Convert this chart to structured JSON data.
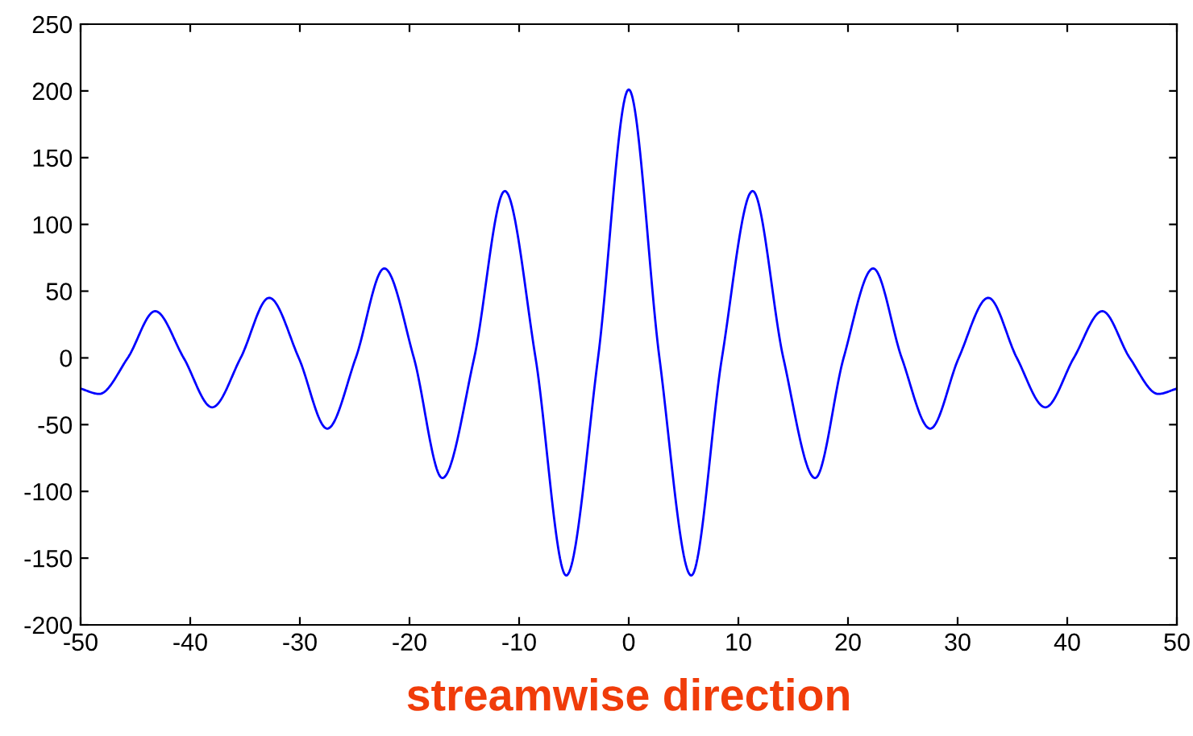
{
  "chart_data": {
    "type": "line",
    "xlabel": "streamwise direction",
    "series": [
      {
        "color": "#0000ff",
        "x": [
          -50,
          -48.3,
          -45.7,
          -43.2,
          -40.6,
          -38,
          -35.4,
          -32.8,
          -30.1,
          -27.5,
          -24.9,
          -22.3,
          -19.6,
          -17,
          -14.1,
          -11.3,
          -8.5,
          -5.7,
          -2.8,
          0,
          2.8,
          5.7,
          8.5,
          11.3,
          14.1,
          17,
          19.6,
          22.3,
          24.9,
          27.5,
          30.1,
          32.8,
          35.4,
          38,
          40.6,
          43.2,
          45.7,
          48.3,
          50
        ],
        "values": [
          -23,
          -27,
          0,
          35,
          0,
          -37,
          0,
          45,
          0,
          -53,
          0,
          67,
          0,
          -90,
          0,
          125,
          0,
          -163,
          0,
          201,
          0,
          -163,
          0,
          125,
          0,
          -90,
          0,
          67,
          0,
          -53,
          0,
          45,
          0,
          -37,
          0,
          35,
          0,
          -27,
          -23
        ]
      }
    ],
    "xlim": [
      -50,
      50
    ],
    "ylim": [
      -200,
      250
    ],
    "xticks": [
      -50,
      -40,
      -30,
      -20,
      -10,
      0,
      10,
      20,
      30,
      40,
      50
    ],
    "yticks": [
      -200,
      -150,
      -100,
      -50,
      0,
      50,
      100,
      150,
      200,
      250
    ],
    "grid": false,
    "marker": "none",
    "line_style": "solid"
  }
}
